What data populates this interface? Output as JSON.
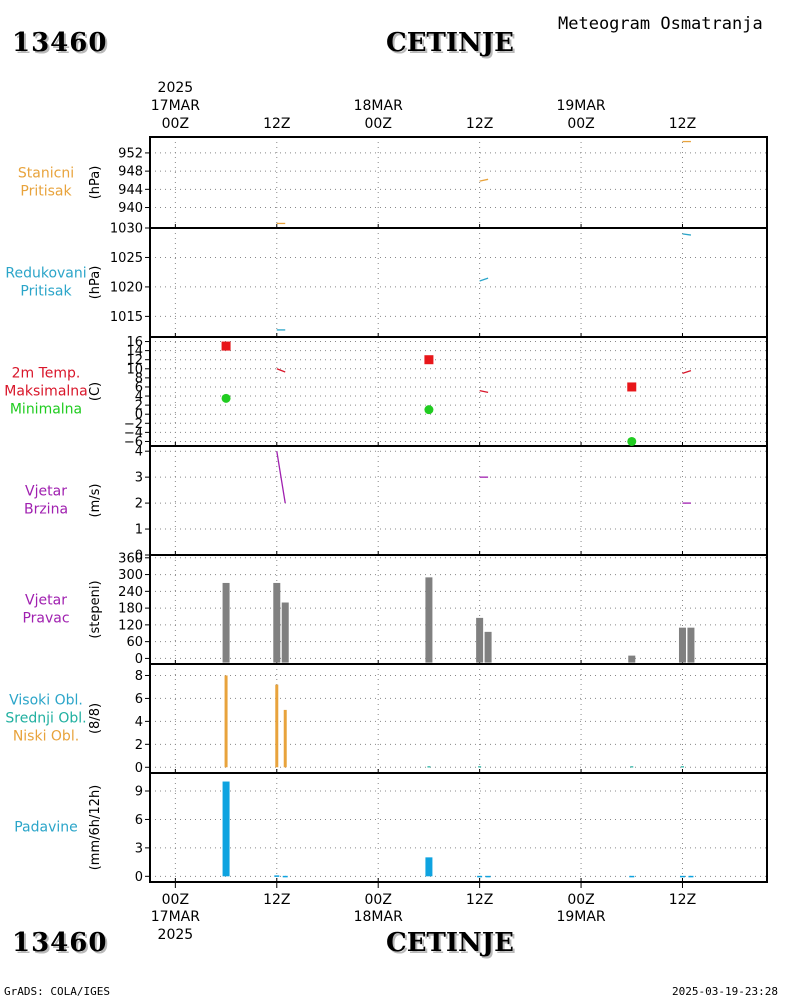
{
  "header": {
    "station_id": "13460",
    "station_name": "CETINJE",
    "subtitle": "Meteogram Osmatranja",
    "footer_left": "GrADS: COLA/IGES",
    "footer_right": "2025-03-19-23:28"
  },
  "colors": {
    "orange": "#e8a33c",
    "teal": "#2ba5c9",
    "red": "#e8161a",
    "maxred": "#d9162a",
    "green": "#20cc20",
    "purple": "#a020b0",
    "gray": "#808080",
    "cloud_teal": "#20b0a0",
    "blue": "#0ea3e0"
  },
  "time_axis": {
    "top_year": "2025",
    "bottom_year": "2025",
    "ticks": [
      {
        "hour": 0,
        "label": "00Z",
        "date": "17MAR"
      },
      {
        "hour": 12,
        "label": "12Z",
        "date": ""
      },
      {
        "hour": 24,
        "label": "00Z",
        "date": "18MAR"
      },
      {
        "hour": 36,
        "label": "12Z",
        "date": ""
      },
      {
        "hour": 48,
        "label": "00Z",
        "date": "19MAR"
      },
      {
        "hour": 60,
        "label": "12Z",
        "date": ""
      }
    ],
    "range_hours": [
      -3,
      70
    ]
  },
  "panels": [
    {
      "id": "stanicni",
      "labels": [
        "Stanicni",
        "Pritisak"
      ],
      "label_colors": [
        "#e8a33c",
        "#e8a33c"
      ],
      "unit": "(hPa)",
      "ylim": [
        935.5,
        955.5
      ],
      "ticks": [
        940,
        944,
        948,
        952
      ],
      "tick_labels": [
        "940",
        "944",
        "948",
        "952"
      ],
      "grid": [
        940,
        944,
        948,
        952
      ]
    },
    {
      "id": "redukovani",
      "labels": [
        "Redukovani",
        "Pritisak"
      ],
      "label_colors": [
        "#2ba5c9",
        "#2ba5c9"
      ],
      "unit": "(hPa)",
      "ylim": [
        1011.5,
        1030
      ],
      "ticks": [
        1015,
        1020,
        1025,
        1030
      ],
      "tick_labels": [
        "1015",
        "1020",
        "1025",
        "1030"
      ],
      "grid": [
        1015,
        1020,
        1025
      ]
    },
    {
      "id": "temp",
      "labels": [
        "2m Temp.",
        "Maksimalna",
        "Minimalna"
      ],
      "label_colors": [
        "#d9162a",
        "#d9162a",
        "#20cc20"
      ],
      "unit": "(C)",
      "ylim": [
        -7,
        17
      ],
      "ticks": [
        -6,
        -4,
        -2,
        0,
        2,
        4,
        6,
        8,
        10,
        12,
        14,
        16
      ],
      "tick_labels": [
        "−6",
        "−4",
        "−2",
        "0",
        "2",
        "4",
        "6",
        "8",
        "10",
        "12",
        "14",
        "16"
      ],
      "grid": [
        -6,
        -4,
        -2,
        0,
        2,
        4,
        6,
        8,
        10,
        12,
        14,
        16
      ]
    },
    {
      "id": "brzina",
      "labels": [
        "Vjetar",
        "Brzina"
      ],
      "label_colors": [
        "#a020b0",
        "#a020b0"
      ],
      "unit": "(m/s)",
      "ylim": [
        0,
        4.2
      ],
      "ticks": [
        0,
        1,
        2,
        3,
        4
      ],
      "tick_labels": [
        "0",
        "1",
        "2",
        "3",
        "4"
      ],
      "grid": [
        1,
        2,
        3,
        4
      ]
    },
    {
      "id": "pravac",
      "labels": [
        "Vjetar",
        "Pravac"
      ],
      "label_colors": [
        "#a020b0",
        "#a020b0"
      ],
      "unit": "(stepeni)",
      "ylim": [
        -20,
        370
      ],
      "ticks": [
        0,
        60,
        120,
        180,
        240,
        300,
        360
      ],
      "tick_labels": [
        "0",
        "60",
        "120",
        "180",
        "240",
        "300",
        "360"
      ],
      "grid": [
        0,
        60,
        120,
        180,
        240,
        300,
        360
      ]
    },
    {
      "id": "oblaci",
      "labels": [
        "Visoki Obl.",
        "Srednji Obl.",
        "Niski Obl."
      ],
      "label_colors": [
        "#2ba5c9",
        "#20b0a0",
        "#e8a33c"
      ],
      "unit": "(8/8)",
      "ylim": [
        -0.5,
        9.0
      ],
      "ticks": [
        0,
        2,
        4,
        6,
        8
      ],
      "tick_labels": [
        "0",
        "2",
        "4",
        "6",
        "8"
      ],
      "grid": [
        0,
        2,
        4,
        6,
        8
      ]
    },
    {
      "id": "padavine",
      "labels": [
        "Padavine"
      ],
      "label_colors": [
        "#2ba5c9"
      ],
      "unit": "(mm/6h/12h)",
      "ylim": [
        -0.6,
        10.9
      ],
      "ticks": [
        0,
        3,
        6,
        9
      ],
      "tick_labels": [
        "0",
        "3",
        "6",
        "9"
      ],
      "grid": [
        0,
        3,
        6,
        9
      ]
    }
  ],
  "chart_data": {
    "type": "line",
    "stanicni_pritisak_hPa": [
      {
        "x": [
          "17MAR 12Z",
          "17MAR 13Z"
        ],
        "y": [
          936.5,
          936.5
        ]
      },
      {
        "x": [
          "18MAR 12Z",
          "18MAR 13Z"
        ],
        "y": [
          945.8,
          946.2
        ]
      },
      {
        "x": [
          "19MAR 12Z",
          "19MAR 13Z"
        ],
        "y": [
          954.5,
          954.5
        ]
      }
    ],
    "redukovani_pritisak_hPa": [
      {
        "x": [
          "17MAR 12Z",
          "17MAR 13Z"
        ],
        "y": [
          1012.7,
          1012.7
        ]
      },
      {
        "x": [
          "18MAR 12Z",
          "18MAR 13Z"
        ],
        "y": [
          1021.0,
          1021.5
        ]
      },
      {
        "x": [
          "19MAR 12Z",
          "19MAR 13Z"
        ],
        "y": [
          1029.0,
          1028.8
        ]
      }
    ],
    "temperatura_2m_C": [
      {
        "x": [
          "17MAR 12Z",
          "17MAR 13Z"
        ],
        "y": [
          10.0,
          9.3
        ]
      },
      {
        "x": [
          "18MAR 12Z",
          "18MAR 13Z"
        ],
        "y": [
          5.2,
          4.8
        ]
      },
      {
        "x": [
          "19MAR 12Z",
          "19MAR 13Z"
        ],
        "y": [
          9.0,
          9.6
        ]
      }
    ],
    "maksimalna_C": [
      {
        "x": "17MAR 06Z",
        "y": 15.0
      },
      {
        "x": "18MAR 06Z",
        "y": 12.0
      },
      {
        "x": "19MAR 06Z",
        "y": 6.0
      }
    ],
    "minimalna_C": [
      {
        "x": "17MAR 06Z",
        "y": 3.5
      },
      {
        "x": "18MAR 06Z",
        "y": 1.0
      },
      {
        "x": "19MAR 06Z",
        "y": -6.0
      }
    ],
    "vjetar_brzina_ms": [
      {
        "x": [
          "17MAR 12Z",
          "17MAR 13Z"
        ],
        "y": [
          4.0,
          2.0
        ]
      },
      {
        "x": [
          "18MAR 12Z",
          "18MAR 13Z"
        ],
        "y": [
          3.0,
          3.0
        ]
      },
      {
        "x": [
          "19MAR 12Z",
          "19MAR 13Z"
        ],
        "y": [
          2.0,
          2.0
        ]
      }
    ],
    "vjetar_pravac_stepeni": [
      {
        "x": "17MAR 06Z",
        "y": 270
      },
      {
        "x": "17MAR 12Z",
        "y": 270
      },
      {
        "x": "17MAR 13Z",
        "y": 200
      },
      {
        "x": "18MAR 06Z",
        "y": 290
      },
      {
        "x": "18MAR 12Z",
        "y": 145
      },
      {
        "x": "18MAR 13Z",
        "y": 95
      },
      {
        "x": "19MAR 06Z",
        "y": 10
      },
      {
        "x": "19MAR 12Z",
        "y": 110
      },
      {
        "x": "19MAR 13Z",
        "y": 110
      }
    ],
    "niski_oblaci_osmine": [
      {
        "x": "17MAR 06Z",
        "y": 8
      },
      {
        "x": "17MAR 12Z",
        "y": 7.2
      },
      {
        "x": "17MAR 13Z",
        "y": 5
      },
      {
        "x": "18MAR 06Z",
        "y": 0
      },
      {
        "x": "18MAR 12Z",
        "y": 0
      },
      {
        "x": "19MAR 06Z",
        "y": 0
      },
      {
        "x": "19MAR 12Z",
        "y": 0
      }
    ],
    "padavine_mm": [
      {
        "x": "17MAR 06Z",
        "y": 10.0
      },
      {
        "x": "17MAR 12Z",
        "y": 0.1
      },
      {
        "x": "17MAR 13Z",
        "y": 0.05
      },
      {
        "x": "18MAR 06Z",
        "y": 2.0
      },
      {
        "x": "18MAR 12Z",
        "y": 0.05
      },
      {
        "x": "18MAR 13Z",
        "y": 0.05
      },
      {
        "x": "19MAR 06Z",
        "y": 0.05
      },
      {
        "x": "19MAR 12Z",
        "y": 0.05
      },
      {
        "x": "19MAR 13Z",
        "y": 0.05
      }
    ],
    "grid": true
  }
}
